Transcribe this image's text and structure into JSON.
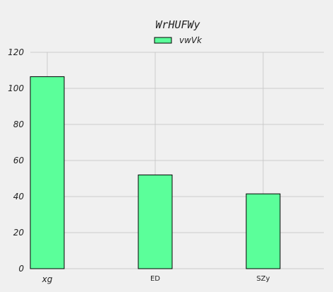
{
  "chart_data": {
    "type": "bar",
    "title": "WrHUFWy",
    "xlabel": "",
    "ylabel": "",
    "categories": [
      "xg",
      "ED",
      "SZy"
    ],
    "series": [
      {
        "name": "vwVk",
        "values": [
          106.5,
          52,
          41.5
        ],
        "color": "#5bff9a"
      }
    ],
    "ylim": [
      0,
      120
    ],
    "yticks": [
      "0",
      "20",
      "40",
      "60",
      "80",
      "100",
      "120"
    ],
    "grid": true,
    "legend": "top-center",
    "background": "#f0f0f0",
    "grid_color": "#cbcbcb",
    "edge_color": "#000000"
  }
}
